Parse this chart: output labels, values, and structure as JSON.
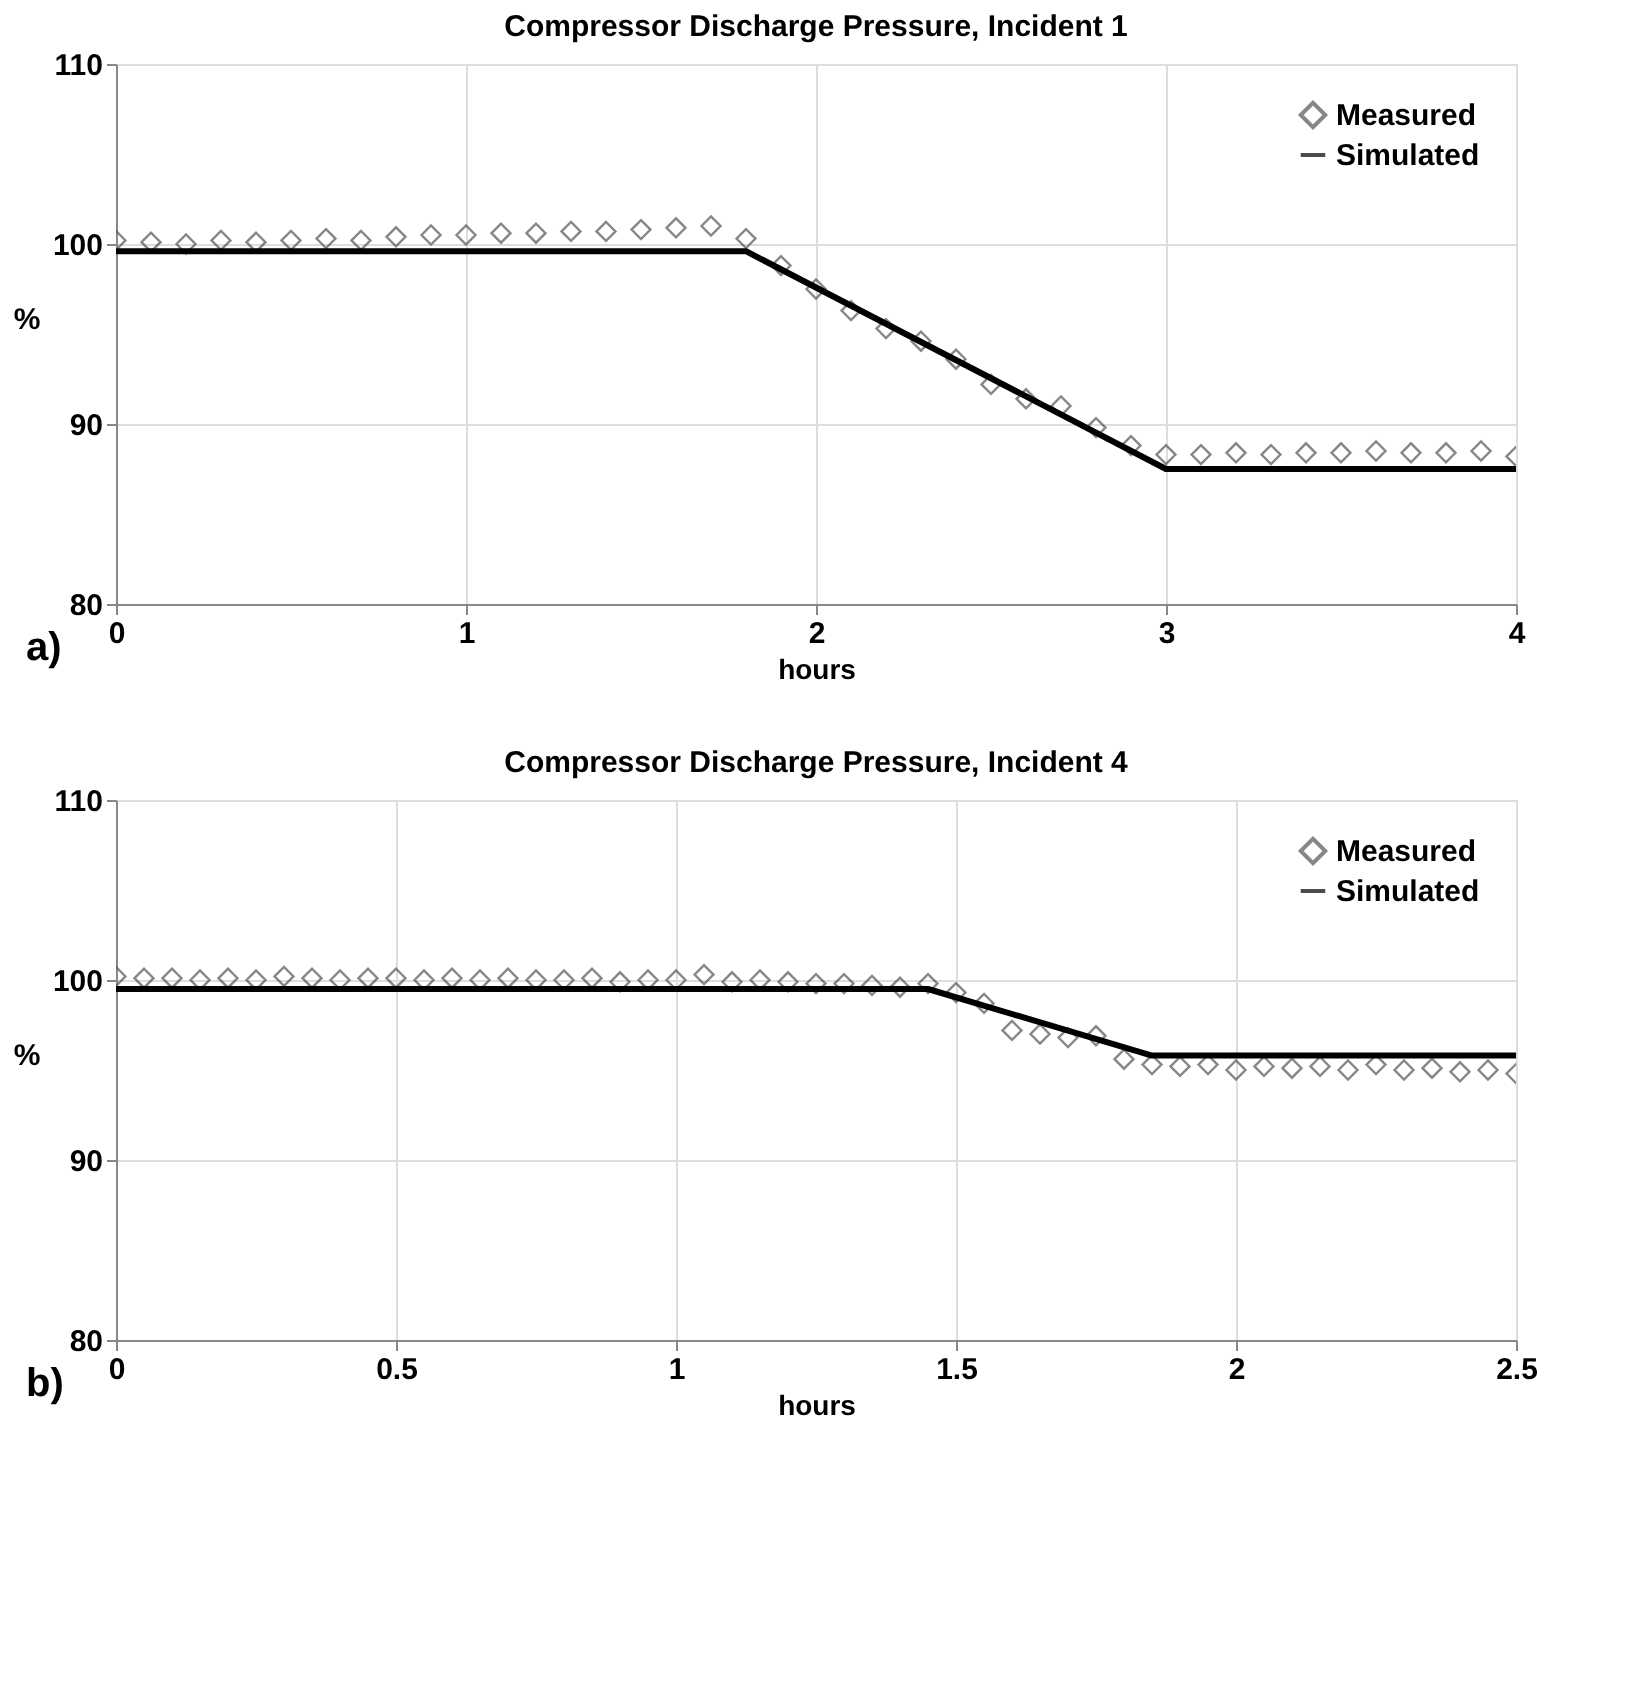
{
  "chart_data": [
    {
      "type": "scatter",
      "title": "Compressor Discharge Pressure, Incident 1",
      "xlabel": "hours",
      "ylabel": "%",
      "annotations": [
        "a)"
      ],
      "xlim": [
        0,
        4
      ],
      "xticks": [
        0,
        1,
        2,
        3,
        4
      ],
      "ylim": [
        80,
        110
      ],
      "yticks": [
        80,
        90,
        100,
        110
      ],
      "grid": true,
      "legend": "top right",
      "series": [
        {
          "name": "Measured",
          "marker": "diamond",
          "color": "#555555",
          "x": [
            0,
            0.1,
            0.2,
            0.3,
            0.4,
            0.5,
            0.6,
            0.7,
            0.8,
            0.9,
            1.0,
            1.1,
            1.2,
            1.3,
            1.4,
            1.5,
            1.6,
            1.7,
            1.8,
            1.9,
            2.0,
            2.1,
            2.2,
            2.3,
            2.4,
            2.5,
            2.6,
            2.7,
            2.8,
            2.9,
            3.0,
            3.1,
            3.2,
            3.3,
            3.4,
            3.5,
            3.6,
            3.7,
            3.8,
            3.9,
            4.0
          ],
          "values": [
            100.2,
            100.1,
            100.0,
            100.2,
            100.1,
            100.2,
            100.3,
            100.2,
            100.4,
            100.5,
            100.5,
            100.6,
            100.6,
            100.7,
            100.7,
            100.8,
            100.9,
            101.0,
            100.3,
            98.8,
            97.5,
            96.3,
            95.3,
            94.6,
            93.6,
            92.2,
            91.4,
            91.0,
            89.8,
            88.8,
            88.3,
            88.3,
            88.4,
            88.3,
            88.4,
            88.4,
            88.5,
            88.4,
            88.4,
            88.5,
            88.2
          ]
        },
        {
          "name": "Simulated",
          "type": "line",
          "line_style": "solid",
          "color": "#000000",
          "x": [
            0,
            1.8,
            3.0,
            4.0
          ],
          "values": [
            99.6,
            99.6,
            87.5,
            87.5
          ]
        }
      ]
    },
    {
      "type": "scatter",
      "title": "Compressor Discharge Pressure, Incident 4",
      "xlabel": "hours",
      "ylabel": "%",
      "annotations": [
        "b)"
      ],
      "xlim": [
        0,
        2.5
      ],
      "xticks": [
        0,
        0.5,
        1,
        1.5,
        2,
        2.5
      ],
      "ylim": [
        80,
        110
      ],
      "yticks": [
        80,
        90,
        100,
        110
      ],
      "grid": true,
      "legend": "top right",
      "series": [
        {
          "name": "Measured",
          "marker": "diamond",
          "color": "#555555",
          "x": [
            0,
            0.05,
            0.1,
            0.15,
            0.2,
            0.25,
            0.3,
            0.35,
            0.4,
            0.45,
            0.5,
            0.55,
            0.6,
            0.65,
            0.7,
            0.75,
            0.8,
            0.85,
            0.9,
            0.95,
            1.0,
            1.05,
            1.1,
            1.15,
            1.2,
            1.25,
            1.3,
            1.35,
            1.4,
            1.45,
            1.5,
            1.55,
            1.6,
            1.65,
            1.7,
            1.75,
            1.8,
            1.85,
            1.9,
            1.95,
            2.0,
            2.05,
            2.1,
            2.15,
            2.2,
            2.25,
            2.3,
            2.35,
            2.4,
            2.45,
            2.5
          ],
          "values": [
            100.2,
            100.1,
            100.1,
            100.0,
            100.1,
            100.0,
            100.2,
            100.1,
            100.0,
            100.1,
            100.1,
            100.0,
            100.1,
            100.0,
            100.1,
            100.0,
            100.0,
            100.1,
            99.9,
            100.0,
            100.0,
            100.3,
            99.9,
            100.0,
            99.9,
            99.8,
            99.8,
            99.7,
            99.6,
            99.8,
            99.3,
            98.7,
            97.2,
            97.0,
            96.8,
            96.9,
            95.6,
            95.3,
            95.2,
            95.3,
            95.0,
            95.2,
            95.1,
            95.2,
            95.0,
            95.3,
            95.0,
            95.1,
            94.9,
            95.0,
            94.8
          ]
        },
        {
          "name": "Simulated",
          "type": "line",
          "line_style": "solid",
          "color": "#000000",
          "x": [
            0,
            1.45,
            1.85,
            2.5
          ],
          "values": [
            99.5,
            99.5,
            95.8,
            95.8
          ]
        }
      ]
    }
  ]
}
